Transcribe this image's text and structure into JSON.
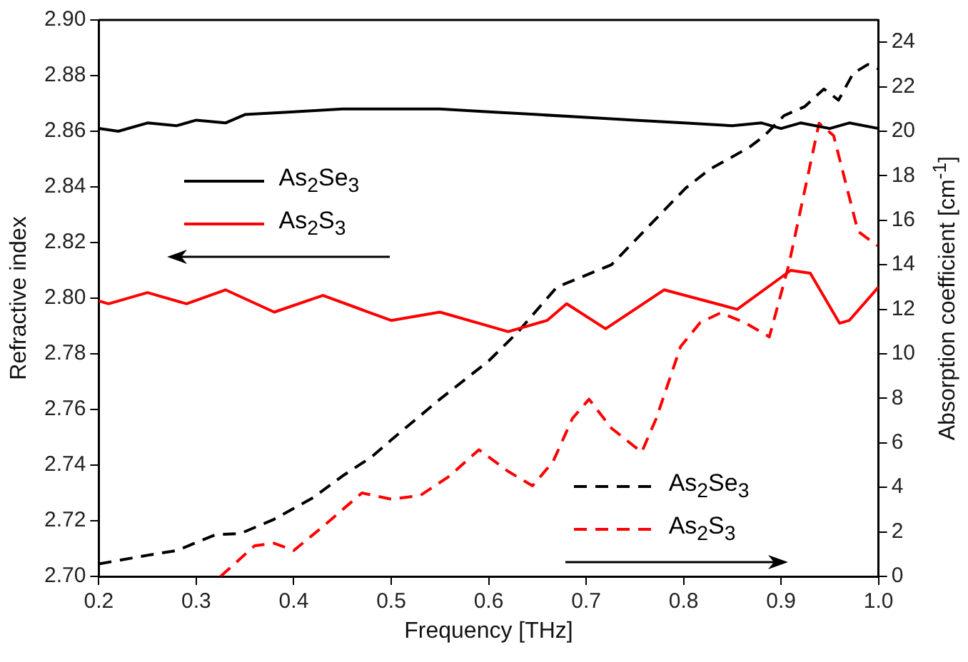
{
  "chart_data": {
    "type": "line",
    "xlabel": "Frequency [THz]",
    "ylabel": "Refractive index",
    "y2label": "Absorption coefficient [cm$^{-1}$]",
    "xlim": [
      0.2,
      1.0
    ],
    "xticks": [
      {
        "value": 0.2,
        "label": "0.2"
      },
      {
        "value": 0.3,
        "label": "0.3"
      },
      {
        "value": 0.4,
        "label": "0.4"
      },
      {
        "value": 0.5,
        "label": "0.5"
      },
      {
        "value": 0.6,
        "label": "0.6"
      },
      {
        "value": 0.7,
        "label": "0.7"
      },
      {
        "value": 0.8,
        "label": "0.8"
      },
      {
        "value": 0.9,
        "label": "0.9"
      },
      {
        "value": 1.0,
        "label": "1.0"
      }
    ],
    "ylim": [
      2.7,
      2.9
    ],
    "yticks": [
      {
        "value": 2.7,
        "label": "2.70"
      },
      2.72,
      2.74,
      2.76,
      2.78,
      {
        "value": 2.8,
        "label": "2.80"
      },
      2.82,
      2.84,
      2.86,
      2.88,
      {
        "value": 2.9,
        "label": "2.90"
      }
    ],
    "y2lim": [
      0,
      25
    ],
    "y2ticks": [
      0,
      2,
      4,
      6,
      8,
      10,
      12,
      14,
      16,
      18,
      20,
      22,
      24
    ],
    "grid": false,
    "legend": "center left",
    "marker": "none",
    "series": [
      {
        "name": "As$_{2}$Se$_{3}$",
        "color": "#000000",
        "axis": "y",
        "line_style": "solid",
        "x": [
          0.2,
          0.22,
          0.25,
          0.28,
          0.3,
          0.33,
          0.35,
          0.4,
          0.45,
          0.5,
          0.55,
          0.6,
          0.65,
          0.7,
          0.75,
          0.8,
          0.85,
          0.88,
          0.9,
          0.92,
          0.95,
          0.97,
          1.0
        ],
        "values": [
          2.861,
          2.86,
          2.863,
          2.862,
          2.864,
          2.863,
          2.866,
          2.867,
          2.868,
          2.868,
          2.868,
          2.867,
          2.866,
          2.865,
          2.864,
          2.863,
          2.862,
          2.863,
          2.861,
          2.863,
          2.861,
          2.863,
          2.861
        ]
      },
      {
        "name": "As$_{2}$S$_{3}$",
        "color": "#ff0000",
        "axis": "y",
        "line_style": "solid",
        "x": [
          0.2,
          0.21,
          0.25,
          0.29,
          0.33,
          0.38,
          0.43,
          0.5,
          0.55,
          0.62,
          0.66,
          0.68,
          0.72,
          0.78,
          0.855,
          0.91,
          0.93,
          0.96,
          0.97,
          1.0
        ],
        "values": [
          2.799,
          2.798,
          2.802,
          2.798,
          2.803,
          2.795,
          2.801,
          2.792,
          2.795,
          2.788,
          2.792,
          2.798,
          2.789,
          2.803,
          2.796,
          2.81,
          2.809,
          2.791,
          2.792,
          2.804
        ]
      },
      {
        "name": "As$_{2}$Se$_{3}$",
        "color": "#000000",
        "axis": "y2",
        "line_style": "dashed",
        "x": [
          0.2,
          0.25,
          0.28,
          0.32,
          0.345,
          0.38,
          0.42,
          0.45,
          0.48,
          0.5,
          0.55,
          0.6,
          0.63,
          0.67,
          0.726,
          0.802,
          0.827,
          0.848,
          0.868,
          0.883,
          0.903,
          0.924,
          0.944,
          0.959,
          0.974,
          0.989,
          1.0
        ],
        "values": [
          0.56,
          0.95,
          1.16,
          1.88,
          1.92,
          2.57,
          3.54,
          4.51,
          5.37,
          6.13,
          7.96,
          9.68,
          10.98,
          13.0,
          14.0,
          17.44,
          18.3,
          18.8,
          19.3,
          19.8,
          20.7,
          21.1,
          21.9,
          21.4,
          22.6,
          23.0,
          22.8
        ]
      },
      {
        "name": "As$_{2}$S$_{3}$",
        "color": "#ff0000",
        "axis": "y2",
        "line_style": "dashed",
        "x": [
          0.325,
          0.33,
          0.36,
          0.38,
          0.4,
          0.43,
          0.47,
          0.5,
          0.53,
          0.56,
          0.59,
          0.62,
          0.645,
          0.666,
          0.686,
          0.703,
          0.726,
          0.757,
          0.772,
          0.797,
          0.817,
          0.838,
          0.863,
          0.888,
          0.908,
          0.939,
          0.954,
          0.979,
          0.999
        ],
        "values": [
          0,
          0.2,
          1.38,
          1.49,
          1.16,
          2.24,
          3.75,
          3.47,
          3.64,
          4.51,
          5.69,
          4.72,
          4.07,
          5.15,
          7.1,
          7.96,
          6.66,
          5.58,
          7.1,
          10.33,
          11.4,
          11.84,
          11.4,
          10.76,
          14.0,
          20.36,
          19.8,
          15.5,
          14.86
        ]
      }
    ]
  }
}
